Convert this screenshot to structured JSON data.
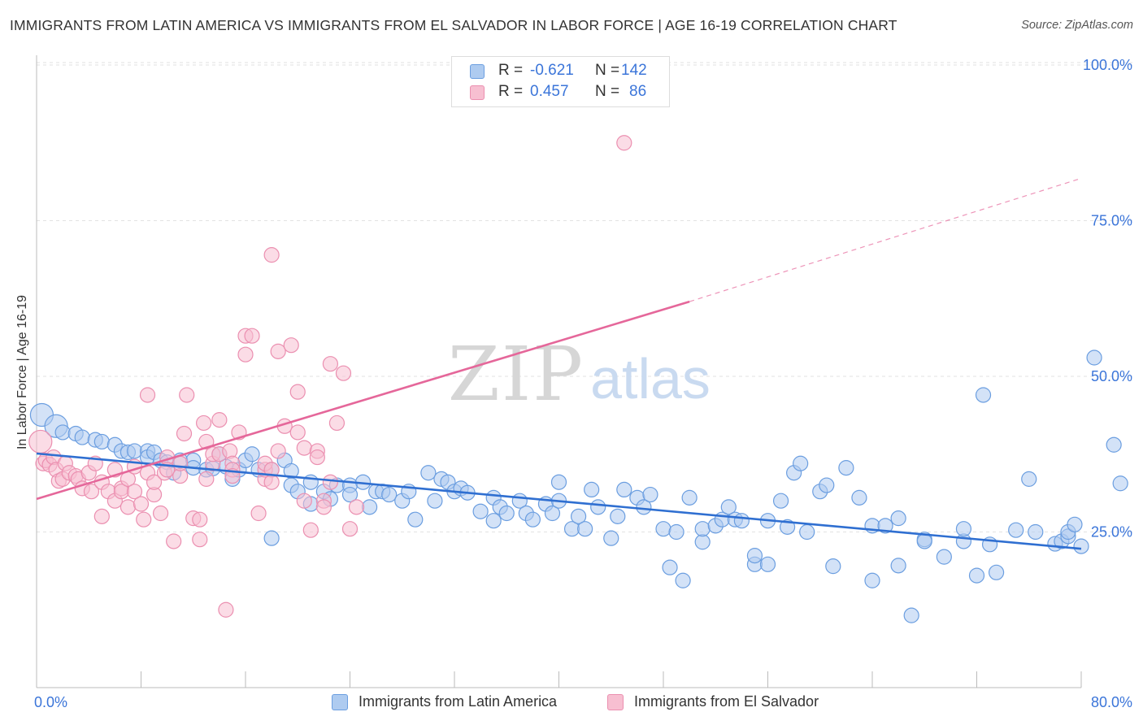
{
  "header": {
    "title": "IMMIGRANTS FROM LATIN AMERICA VS IMMIGRANTS FROM EL SALVADOR IN LABOR FORCE | AGE 16-19 CORRELATION CHART",
    "source": "Source: ZipAtlas.com"
  },
  "watermark": {
    "zip": "ZIP",
    "atlas": "atlas"
  },
  "legend": {
    "r_label": "R =",
    "n_label": "N =",
    "series": [
      {
        "r": "-0.621",
        "n": "142"
      },
      {
        "r": "0.457",
        "n": "86"
      }
    ]
  },
  "colors": {
    "blue_fill": "#aecbf0",
    "blue_stroke": "#6b9ee0",
    "blue_line": "#2f6fd1",
    "pink_fill": "#f7bfd1",
    "pink_stroke": "#eb8fb0",
    "pink_line": "#e5679a",
    "axis_text": "#3b75d9",
    "grid": "#e2e2e2"
  },
  "chart_data": {
    "type": "scatter",
    "title": "IMMIGRANTS FROM LATIN AMERICA VS IMMIGRANTS FROM EL SALVADOR IN LABOR FORCE | AGE 16-19 CORRELATION CHART",
    "xlabel": "",
    "ylabel": "In Labor Force | Age 16-19",
    "xlim": [
      0,
      80
    ],
    "ylim": [
      0,
      103
    ],
    "x_tick_labels": [
      "0.0%",
      "80.0%"
    ],
    "y_ticks": [
      25,
      50,
      75,
      100
    ],
    "y_tick_labels": [
      "25.0%",
      "50.0%",
      "75.0%",
      "100.0%"
    ],
    "grid": true,
    "legend_position": "top-center",
    "series": [
      {
        "name": "Immigrants from Latin America",
        "color": "#6b9ee0",
        "points": [
          [
            0.4,
            43.8
          ],
          [
            1.5,
            42
          ],
          [
            2,
            41
          ],
          [
            3,
            40.8
          ],
          [
            3.5,
            40.2
          ],
          [
            4.5,
            39.8
          ],
          [
            5,
            39.5
          ],
          [
            6,
            39
          ],
          [
            6.5,
            38
          ],
          [
            7,
            37.8
          ],
          [
            7.5,
            38
          ],
          [
            8.5,
            38
          ],
          [
            8.5,
            37
          ],
          [
            9,
            37.8
          ],
          [
            9.5,
            36.5
          ],
          [
            10,
            36.2
          ],
          [
            10.5,
            34.5
          ],
          [
            11,
            36.5
          ],
          [
            12,
            36.5
          ],
          [
            12,
            35.3
          ],
          [
            13,
            35
          ],
          [
            13.5,
            35.2
          ],
          [
            14,
            37.5
          ],
          [
            14.5,
            35.5
          ],
          [
            15,
            33.5
          ],
          [
            15.5,
            35
          ],
          [
            16,
            36.5
          ],
          [
            16.5,
            37.5
          ],
          [
            17,
            35
          ],
          [
            18,
            35
          ],
          [
            18,
            24
          ],
          [
            19,
            36.5
          ],
          [
            19.5,
            34.8
          ],
          [
            19.5,
            32.5
          ],
          [
            20,
            31.5
          ],
          [
            21,
            29.5
          ],
          [
            21,
            33
          ],
          [
            22,
            31.5
          ],
          [
            22.5,
            30.3
          ],
          [
            23,
            32.5
          ],
          [
            24,
            32.5
          ],
          [
            24,
            31
          ],
          [
            25,
            33
          ],
          [
            25.5,
            29
          ],
          [
            26,
            31.5
          ],
          [
            26.5,
            31.5
          ],
          [
            27,
            31
          ],
          [
            28,
            30
          ],
          [
            28.5,
            31.5
          ],
          [
            29,
            27
          ],
          [
            30,
            34.5
          ],
          [
            30.5,
            30
          ],
          [
            31,
            33.5
          ],
          [
            31.5,
            33
          ],
          [
            32,
            31.5
          ],
          [
            32.5,
            32
          ],
          [
            33,
            31.3
          ],
          [
            34,
            28.3
          ],
          [
            35,
            30.5
          ],
          [
            35,
            26.8
          ],
          [
            35.5,
            29
          ],
          [
            36,
            28
          ],
          [
            37,
            30
          ],
          [
            37.5,
            28
          ],
          [
            38,
            27
          ],
          [
            39,
            29.5
          ],
          [
            39.5,
            28
          ],
          [
            40,
            30
          ],
          [
            40,
            33
          ],
          [
            41,
            25.5
          ],
          [
            41.5,
            27.5
          ],
          [
            42,
            25.5
          ],
          [
            42.5,
            31.8
          ],
          [
            43,
            29
          ],
          [
            44,
            24
          ],
          [
            44.5,
            27.5
          ],
          [
            45,
            31.8
          ],
          [
            46,
            30.5
          ],
          [
            46.5,
            29
          ],
          [
            47,
            31
          ],
          [
            48,
            25.5
          ],
          [
            48.5,
            19.3
          ],
          [
            49,
            25
          ],
          [
            49.5,
            17.2
          ],
          [
            50,
            30.5
          ],
          [
            51,
            23.4
          ],
          [
            51,
            25.5
          ],
          [
            52,
            26
          ],
          [
            52.5,
            27
          ],
          [
            53,
            29
          ],
          [
            53.5,
            27
          ],
          [
            54,
            26.8
          ],
          [
            55,
            19.8
          ],
          [
            55,
            21.2
          ],
          [
            56,
            26.8
          ],
          [
            56,
            19.8
          ],
          [
            57,
            30
          ],
          [
            57.5,
            25.8
          ],
          [
            58,
            34.5
          ],
          [
            58.5,
            36
          ],
          [
            59,
            25
          ],
          [
            60,
            31.5
          ],
          [
            60.5,
            32.5
          ],
          [
            61,
            19.5
          ],
          [
            62,
            35.3
          ],
          [
            63,
            30.5
          ],
          [
            64,
            17.2
          ],
          [
            64,
            26
          ],
          [
            65,
            26
          ],
          [
            66,
            27.2
          ],
          [
            66,
            19.6
          ],
          [
            67,
            11.6
          ],
          [
            68,
            23.8
          ],
          [
            68,
            23.5
          ],
          [
            69.5,
            21
          ],
          [
            71,
            23.5
          ],
          [
            71,
            25.5
          ],
          [
            72,
            18
          ],
          [
            72.5,
            47
          ],
          [
            73,
            23
          ],
          [
            73.5,
            18.5
          ],
          [
            75,
            25.3
          ],
          [
            76,
            33.5
          ],
          [
            76.5,
            25
          ],
          [
            78,
            23.1
          ],
          [
            78.5,
            23.5
          ],
          [
            79,
            24.3
          ],
          [
            79,
            25
          ],
          [
            79.5,
            26.2
          ],
          [
            80,
            22.7
          ],
          [
            81,
            53
          ],
          [
            82.5,
            39
          ],
          [
            83,
            32.8
          ]
        ]
      },
      {
        "name": "Immigrants from El Salvador",
        "color": "#eb8fb0",
        "points": [
          [
            0.3,
            39.5
          ],
          [
            0.5,
            36
          ],
          [
            0.7,
            36.5
          ],
          [
            1,
            35.8
          ],
          [
            1.3,
            37
          ],
          [
            1.5,
            35
          ],
          [
            1.7,
            33.2
          ],
          [
            2,
            33.5
          ],
          [
            2.2,
            36
          ],
          [
            2.5,
            34.5
          ],
          [
            3,
            34
          ],
          [
            3.2,
            33.5
          ],
          [
            3.5,
            32
          ],
          [
            4,
            34.5
          ],
          [
            4.2,
            31.5
          ],
          [
            4.5,
            36
          ],
          [
            5,
            33
          ],
          [
            5,
            27.5
          ],
          [
            5.5,
            31.5
          ],
          [
            6,
            35
          ],
          [
            6,
            30
          ],
          [
            6.5,
            32
          ],
          [
            6.5,
            31.5
          ],
          [
            7,
            33.5
          ],
          [
            7,
            29
          ],
          [
            7.5,
            35.5
          ],
          [
            7.5,
            31.5
          ],
          [
            8,
            29.5
          ],
          [
            8.2,
            27
          ],
          [
            8.5,
            34.5
          ],
          [
            8.5,
            47
          ],
          [
            9,
            31
          ],
          [
            9,
            33
          ],
          [
            9.5,
            28
          ],
          [
            9.8,
            34.5
          ],
          [
            10,
            37
          ],
          [
            10,
            35
          ],
          [
            10.5,
            23.5
          ],
          [
            11,
            34
          ],
          [
            11,
            36
          ],
          [
            11.3,
            40.8
          ],
          [
            11.5,
            47
          ],
          [
            12,
            27.2
          ],
          [
            12.5,
            27
          ],
          [
            12.5,
            23.8
          ],
          [
            12.8,
            42.5
          ],
          [
            13,
            39.5
          ],
          [
            13,
            33.5
          ],
          [
            13.5,
            36
          ],
          [
            13.5,
            37.5
          ],
          [
            14,
            43
          ],
          [
            14,
            37.5
          ],
          [
            14.5,
            12.5
          ],
          [
            14.8,
            38
          ],
          [
            15,
            36
          ],
          [
            15,
            35
          ],
          [
            15,
            34
          ],
          [
            15.5,
            41
          ],
          [
            16,
            53.5
          ],
          [
            16,
            56.5
          ],
          [
            16.5,
            56.5
          ],
          [
            17,
            28
          ],
          [
            17.5,
            33.5
          ],
          [
            17.5,
            35
          ],
          [
            17.5,
            36
          ],
          [
            18,
            35
          ],
          [
            18,
            69.5
          ],
          [
            18,
            33
          ],
          [
            18.5,
            38
          ],
          [
            18.5,
            54
          ],
          [
            19,
            42
          ],
          [
            19.5,
            55
          ],
          [
            20,
            41
          ],
          [
            20,
            47.5
          ],
          [
            20.5,
            38.5
          ],
          [
            20.5,
            30
          ],
          [
            21,
            25.3
          ],
          [
            21.5,
            38
          ],
          [
            21.5,
            37
          ],
          [
            22,
            30
          ],
          [
            22,
            29
          ],
          [
            22.5,
            52
          ],
          [
            22.5,
            33
          ],
          [
            23,
            42.5
          ],
          [
            23.5,
            50.5
          ],
          [
            24,
            25.5
          ],
          [
            24.5,
            29
          ],
          [
            45,
            87.5
          ]
        ]
      }
    ],
    "trendlines": [
      {
        "series": "Immigrants from Latin America",
        "from": [
          0,
          37.6
        ],
        "to": [
          80,
          22.3
        ],
        "style": "solid"
      },
      {
        "series": "Immigrants from El Salvador",
        "from": [
          0,
          30.3
        ],
        "to": [
          50,
          62.0
        ],
        "style": "solid"
      },
      {
        "series": "Immigrants from El Salvador",
        "from": [
          50,
          62.0
        ],
        "to": [
          80,
          81.8
        ],
        "style": "dashed"
      }
    ]
  },
  "bottom_legend": [
    {
      "label": "Immigrants from Latin America"
    },
    {
      "label": "Immigrants from El Salvador"
    }
  ]
}
